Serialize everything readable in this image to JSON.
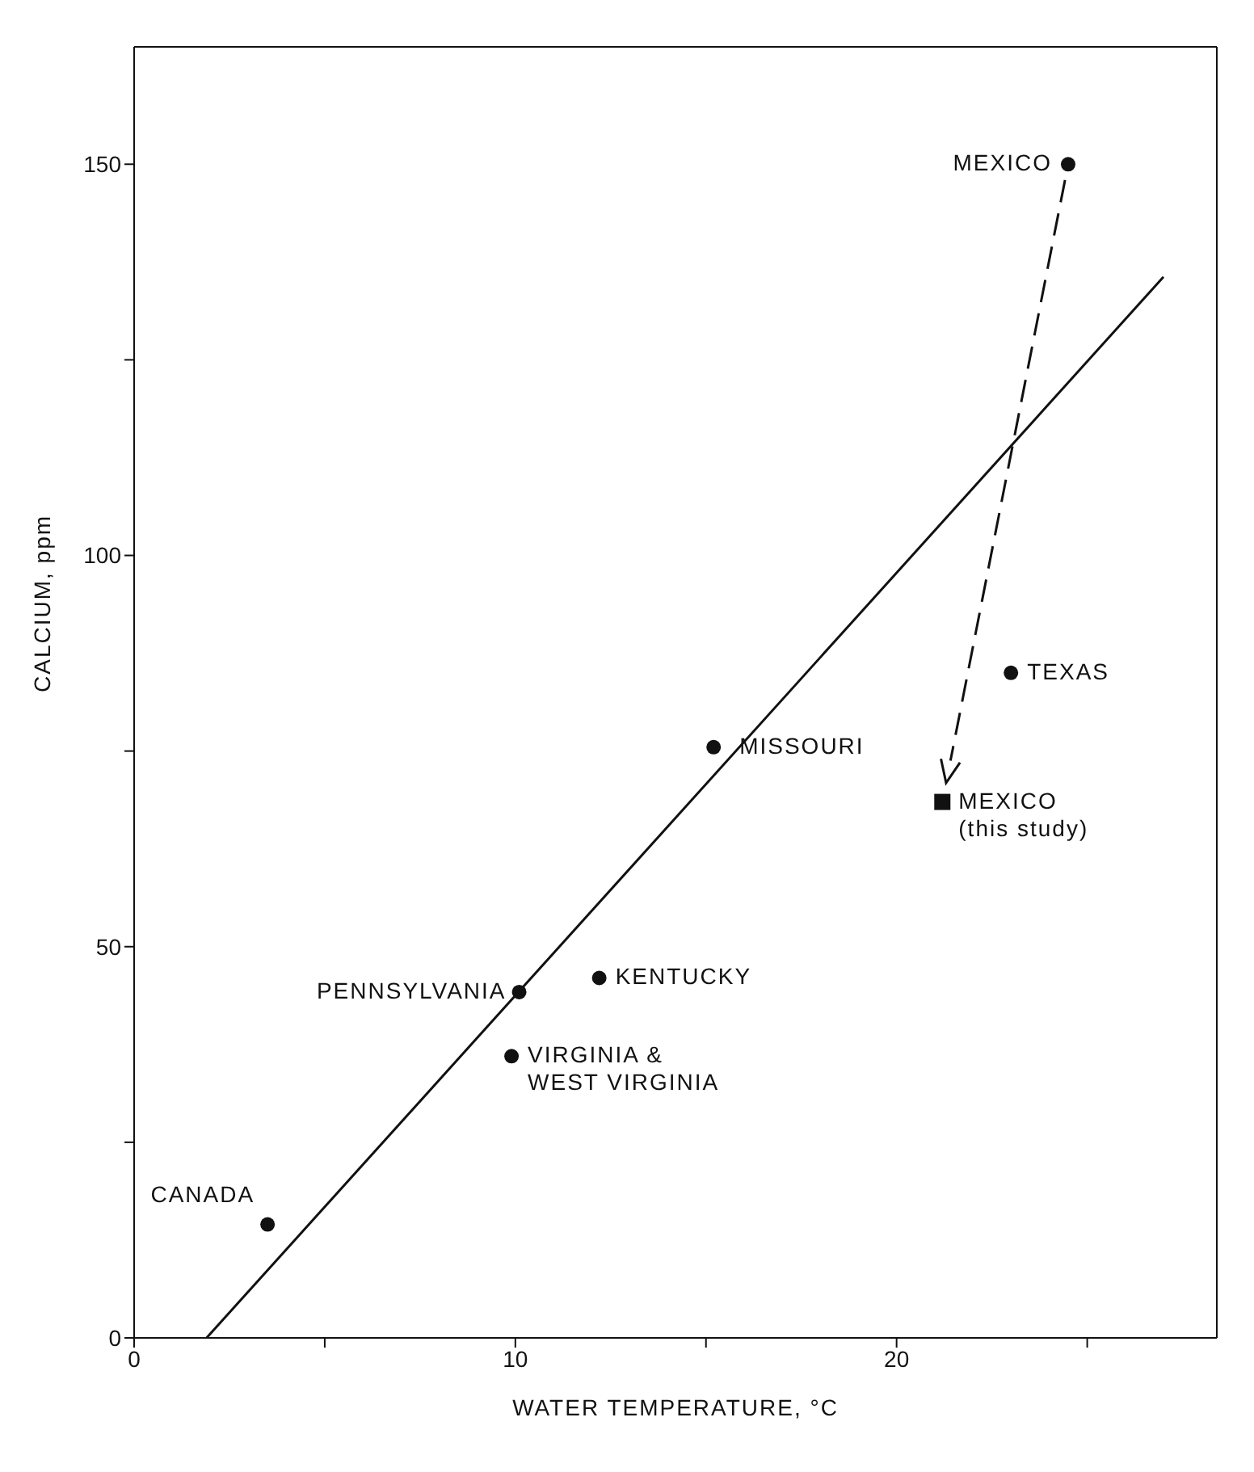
{
  "chart_data": {
    "type": "scatter",
    "xlabel": "WATER TEMPERATURE, °C",
    "ylabel": "CALCIUM, ppm",
    "xlim": [
      0,
      28.4
    ],
    "ylim": [
      0,
      165
    ],
    "xticks": [
      0,
      {
        "value": 5,
        "label": null
      },
      10,
      {
        "value": 15,
        "label": null
      },
      20,
      {
        "value": 25,
        "label": null
      }
    ],
    "yticks": [
      0,
      {
        "value": 25,
        "label": null
      },
      50,
      {
        "value": 75,
        "label": null
      },
      100,
      {
        "value": 125,
        "label": null
      },
      150
    ],
    "series": [
      {
        "marker": "circle",
        "color": "#111111",
        "x": [
          3.5,
          9.9,
          10.1,
          12.2,
          15.2,
          23.0,
          24.5
        ],
        "values": [
          14.5,
          36,
          44.2,
          46,
          75.5,
          85,
          150
        ]
      },
      {
        "marker": "square",
        "color": "#111111",
        "x": [
          21.2
        ],
        "values": [
          68.5
        ]
      },
      {
        "type": "line",
        "marker": "none",
        "line_style": "solid",
        "color": "#111111",
        "x": [
          1.9,
          27.0
        ],
        "values": [
          0,
          135.6
        ]
      }
    ],
    "annotations": [
      {
        "text": "CANADA",
        "x": 3.5,
        "y": 14.5
      },
      {
        "text": "VIRGINIA &\nWEST VIRGINIA",
        "x": 9.9,
        "y": 36
      },
      {
        "text": "PENNSYLVANIA",
        "x": 10.1,
        "y": 44.2
      },
      {
        "text": "KENTUCKY",
        "x": 12.2,
        "y": 46
      },
      {
        "text": "MISSOURI",
        "x": 15.2,
        "y": 75.5
      },
      {
        "text": "TEXAS",
        "x": 23.0,
        "y": 85
      },
      {
        "text": "MEXICO",
        "x": 24.5,
        "y": 150
      },
      {
        "text": "MEXICO\n(this study)",
        "x": 21.2,
        "y": 68.5
      }
    ]
  }
}
